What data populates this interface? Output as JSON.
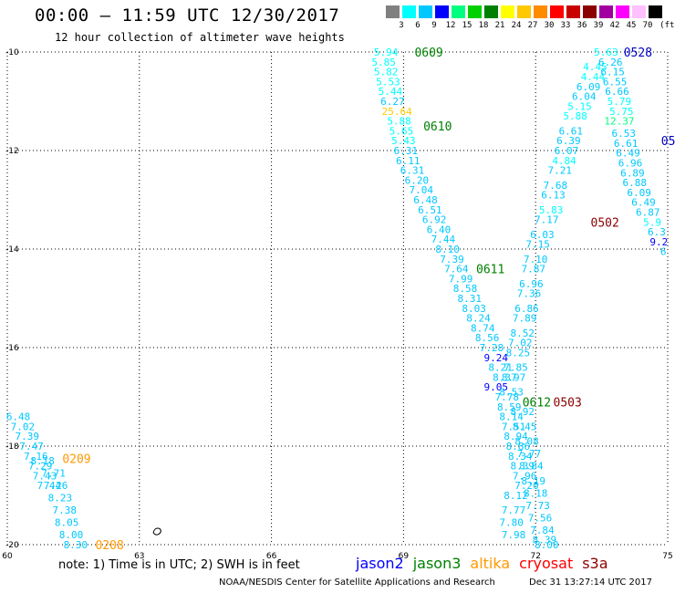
{
  "header": {
    "title": "00:00 — 11:59 UTC 12/30/2017",
    "subtitle": "12 hour collection of altimeter wave heights"
  },
  "scale": {
    "unit": "(ft)",
    "bins": [
      {
        "label": "3",
        "color": "#808080"
      },
      {
        "label": "6",
        "color": "#00ffff"
      },
      {
        "label": "9",
        "color": "#00c8ff"
      },
      {
        "label": "12",
        "color": "#0000ff"
      },
      {
        "label": "15",
        "color": "#00ff80"
      },
      {
        "label": "18",
        "color": "#00d000"
      },
      {
        "label": "21",
        "color": "#008000"
      },
      {
        "label": "24",
        "color": "#ffff00"
      },
      {
        "label": "27",
        "color": "#ffc800"
      },
      {
        "label": "30",
        "color": "#ff8c00"
      },
      {
        "label": "33",
        "color": "#ff0000"
      },
      {
        "label": "36",
        "color": "#c80000"
      },
      {
        "label": "39",
        "color": "#8b0000"
      },
      {
        "label": "42",
        "color": "#a000a0"
      },
      {
        "label": "45",
        "color": "#ff00ff"
      },
      {
        "label": "70",
        "color": "#ffc0ff"
      },
      {
        "label": "",
        "color": "#000000"
      }
    ]
  },
  "map": {
    "lon_ticks": [
      "60",
      "63",
      "66",
      "69",
      "72",
      "75"
    ],
    "lat_ticks": [
      "-10",
      "-12",
      "-14",
      "-16",
      "-18",
      "-20"
    ]
  },
  "chart_data": {
    "type": "scatter",
    "xlim": [
      60,
      75
    ],
    "ylim": [
      -20,
      -10
    ],
    "tracks": [
      {
        "label": "0209",
        "color": "#ff9900",
        "label_pos": [
          61.25,
          -18.25
        ],
        "points": [
          [
            60.25,
            -17.4,
            "6.48"
          ],
          [
            60.35,
            -17.6,
            "7.02"
          ],
          [
            60.45,
            -17.8,
            "7.39"
          ],
          [
            60.55,
            -18.0,
            "7.47"
          ],
          [
            60.65,
            -18.2,
            "7.16"
          ],
          [
            60.75,
            -18.4,
            "7.29"
          ],
          [
            60.85,
            -18.6,
            "7.43"
          ],
          [
            60.95,
            -18.8,
            "7.44"
          ],
          [
            60.8,
            -18.3,
            "8.18"
          ],
          [
            61.05,
            -18.55,
            "7.71"
          ],
          [
            61.1,
            -18.8,
            "7.26"
          ],
          [
            61.2,
            -19.05,
            "8.23"
          ],
          [
            61.3,
            -19.3,
            "7.38"
          ],
          [
            61.35,
            -19.55,
            "8.05"
          ],
          [
            61.45,
            -19.8,
            "8.00"
          ],
          [
            61.55,
            -20.0,
            "8.30"
          ]
        ]
      },
      {
        "label": "0208",
        "color": "#ff9900",
        "label_pos": [
          62.0,
          -20.0
        ],
        "points": []
      },
      {
        "label": "0609",
        "color": "#008000",
        "label_pos": [
          69.25,
          -10.0
        ],
        "points": [
          [
            68.6,
            -10.0,
            "5.94"
          ],
          [
            68.55,
            -10.2,
            "5.85"
          ],
          [
            68.6,
            -10.4,
            "5.82"
          ],
          [
            68.65,
            -10.6,
            "5.53"
          ],
          [
            68.7,
            -10.8,
            "5.44"
          ],
          [
            68.75,
            -11.0,
            "6.27"
          ],
          [
            68.85,
            -11.2,
            "25.64"
          ]
        ]
      },
      {
        "label": "0610",
        "color": "#008000",
        "label_pos": [
          69.45,
          -11.5
        ],
        "points": [
          [
            68.9,
            -11.4,
            "5.88"
          ],
          [
            68.95,
            -11.6,
            "5.65"
          ],
          [
            69.0,
            -11.8,
            "5.43"
          ],
          [
            69.05,
            -12.0,
            "6.31"
          ],
          [
            69.1,
            -12.2,
            "6.11"
          ],
          [
            69.2,
            -12.4,
            "6.31"
          ],
          [
            69.3,
            -12.6,
            "6.20"
          ],
          [
            69.4,
            -12.8,
            "7.04"
          ],
          [
            69.5,
            -13.0,
            "6.48"
          ],
          [
            69.6,
            -13.2,
            "6.51"
          ],
          [
            69.7,
            -13.4,
            "6.92"
          ],
          [
            69.8,
            -13.6,
            "6.40"
          ],
          [
            69.9,
            -13.8,
            "7.44"
          ],
          [
            70.0,
            -14.0,
            "8.10"
          ],
          [
            70.1,
            -14.2,
            "7.39"
          ],
          [
            70.2,
            -14.4,
            "7.64"
          ],
          [
            70.3,
            -14.6,
            "7.99"
          ],
          [
            70.4,
            -14.8,
            "8.58"
          ],
          [
            70.5,
            -15.0,
            "8.31"
          ],
          [
            70.6,
            -15.2,
            "8.03"
          ],
          [
            70.7,
            -15.4,
            "8.24"
          ],
          [
            70.8,
            -15.6,
            "8.74"
          ],
          [
            70.9,
            -15.8,
            "8.56"
          ],
          [
            71.0,
            -16.0,
            "7.28"
          ],
          [
            71.1,
            -16.2,
            "9.24"
          ],
          [
            71.2,
            -16.4,
            "8.21"
          ],
          [
            71.3,
            -16.6,
            "8.37"
          ],
          [
            71.1,
            -16.8,
            "9.05"
          ],
          [
            71.35,
            -17.0,
            "7.78"
          ],
          [
            71.4,
            -17.2,
            "8.59"
          ],
          [
            71.45,
            -17.4,
            "8.14"
          ],
          [
            71.5,
            -17.6,
            "7.51"
          ],
          [
            71.55,
            -17.8,
            "8.94"
          ],
          [
            71.6,
            -18.0,
            "8.86"
          ],
          [
            71.65,
            -18.2,
            "8.34"
          ],
          [
            71.7,
            -18.4,
            "8.39"
          ],
          [
            71.75,
            -18.6,
            "7.96"
          ],
          [
            71.8,
            -18.8,
            "7.20"
          ],
          [
            71.55,
            -19.0,
            "8.12"
          ],
          [
            71.5,
            -19.3,
            "7.77"
          ],
          [
            71.45,
            -19.55,
            "7.80"
          ],
          [
            71.5,
            -19.8,
            "7.98"
          ]
        ]
      },
      {
        "label": "0611",
        "color": "#008000",
        "label_pos": [
          70.65,
          -14.4
        ],
        "points": []
      },
      {
        "label": "0612",
        "color": "#008000",
        "label_pos": [
          71.7,
          -17.1
        ],
        "points": []
      },
      {
        "label": "0502",
        "color": "#8b0000",
        "label_pos": [
          73.25,
          -13.45
        ],
        "points": [
          [
            73.35,
            -10.3,
            "4.45"
          ],
          [
            73.3,
            -10.5,
            "4.44"
          ],
          [
            73.2,
            -10.7,
            "6.09"
          ],
          [
            73.1,
            -10.9,
            "6.04"
          ],
          [
            73.0,
            -11.1,
            "5.15"
          ],
          [
            72.9,
            -11.3,
            "5.88"
          ],
          [
            72.8,
            -11.6,
            "6.61"
          ],
          [
            72.75,
            -11.8,
            "6.39"
          ],
          [
            72.7,
            -12.0,
            "6.07"
          ],
          [
            72.65,
            -12.2,
            "4.84"
          ],
          [
            72.55,
            -12.4,
            "7.21"
          ],
          [
            72.45,
            -12.7,
            "7.68"
          ],
          [
            72.4,
            -12.9,
            "6.13"
          ],
          [
            72.35,
            -13.2,
            "5.83"
          ],
          [
            72.25,
            -13.4,
            "7.17"
          ],
          [
            72.15,
            -13.7,
            "6.03"
          ],
          [
            72.05,
            -13.9,
            "7.15"
          ],
          [
            72.0,
            -14.2,
            "7.10"
          ],
          [
            71.95,
            -14.4,
            "7.87"
          ],
          [
            71.9,
            -14.7,
            "6.96"
          ],
          [
            71.85,
            -14.9,
            "7.36"
          ],
          [
            71.8,
            -15.2,
            "6.86"
          ],
          [
            71.75,
            -15.4,
            "7.89"
          ],
          [
            71.7,
            -15.7,
            "8.52"
          ],
          [
            71.65,
            -15.9,
            "7.02"
          ],
          [
            71.6,
            -16.1,
            "8.25"
          ],
          [
            71.55,
            -16.4,
            "7.85"
          ],
          [
            71.5,
            -16.6,
            "8.97"
          ],
          [
            71.45,
            -16.9,
            "8.53"
          ],
          [
            71.7,
            -17.3,
            "8.92"
          ],
          [
            71.75,
            -17.6,
            "8.45"
          ],
          [
            71.8,
            -17.9,
            "8.08"
          ],
          [
            71.85,
            -18.15,
            "7.77"
          ],
          [
            71.9,
            -18.4,
            "8.84"
          ],
          [
            71.95,
            -18.7,
            "8.19"
          ],
          [
            72.0,
            -18.95,
            "8.18"
          ],
          [
            72.05,
            -19.2,
            "7.73"
          ],
          [
            72.1,
            -19.45,
            "7.56"
          ],
          [
            72.15,
            -19.7,
            "7.84"
          ],
          [
            72.2,
            -19.9,
            "8.39"
          ],
          [
            72.25,
            -20.0,
            "8.00"
          ]
        ]
      },
      {
        "label": "0503",
        "color": "#8b0000",
        "label_pos": [
          72.4,
          -17.1
        ],
        "points": []
      },
      {
        "label": "0528",
        "color": "#0000c0",
        "label_pos": [
          74.0,
          -10.0
        ],
        "points": [
          [
            73.6,
            -10.0,
            "5.63"
          ],
          [
            73.7,
            -10.2,
            "6.26"
          ],
          [
            73.75,
            -10.4,
            "6.15"
          ],
          [
            73.8,
            -10.6,
            "6.55"
          ],
          [
            73.85,
            -10.8,
            "6.66"
          ],
          [
            73.9,
            -11.0,
            "5.79"
          ],
          [
            73.95,
            -11.2,
            "5.75"
          ],
          [
            73.9,
            -11.4,
            "12.37"
          ],
          [
            74.0,
            -11.65,
            "6.53"
          ],
          [
            74.05,
            -11.85,
            "6.61"
          ],
          [
            74.1,
            -12.05,
            "6.49"
          ],
          [
            74.15,
            -12.25,
            "6.96"
          ],
          [
            74.2,
            -12.45,
            "6.89"
          ],
          [
            74.25,
            -12.65,
            "6.88"
          ],
          [
            74.35,
            -12.85,
            "6.09"
          ],
          [
            74.45,
            -13.05,
            "6.49"
          ],
          [
            74.55,
            -13.25,
            "6.87"
          ],
          [
            74.65,
            -13.45,
            "5.9"
          ],
          [
            74.75,
            -13.65,
            "6.3"
          ],
          [
            74.8,
            -13.85,
            "9.2"
          ],
          [
            74.9,
            -14.05,
            "6"
          ]
        ]
      },
      {
        "label": "05",
        "color": "#0000c0",
        "label_pos": [
          74.85,
          -11.8
        ],
        "points": []
      }
    ]
  },
  "legend": {
    "note": "note: 1) Time is in UTC; 2) SWH is in feet",
    "satellites": [
      {
        "name": "jason2",
        "color": "#0000ff"
      },
      {
        "name": "jason3",
        "color": "#008000"
      },
      {
        "name": "altika",
        "color": "#ff9900"
      },
      {
        "name": "cryosat",
        "color": "#ff0000"
      },
      {
        "name": "s3a",
        "color": "#8b0000"
      }
    ]
  },
  "footer": {
    "center": "NOAA/NESDIS Center for Satellite Applications and Research",
    "time": "Dec 31 13:27:14 UTC 2017"
  }
}
